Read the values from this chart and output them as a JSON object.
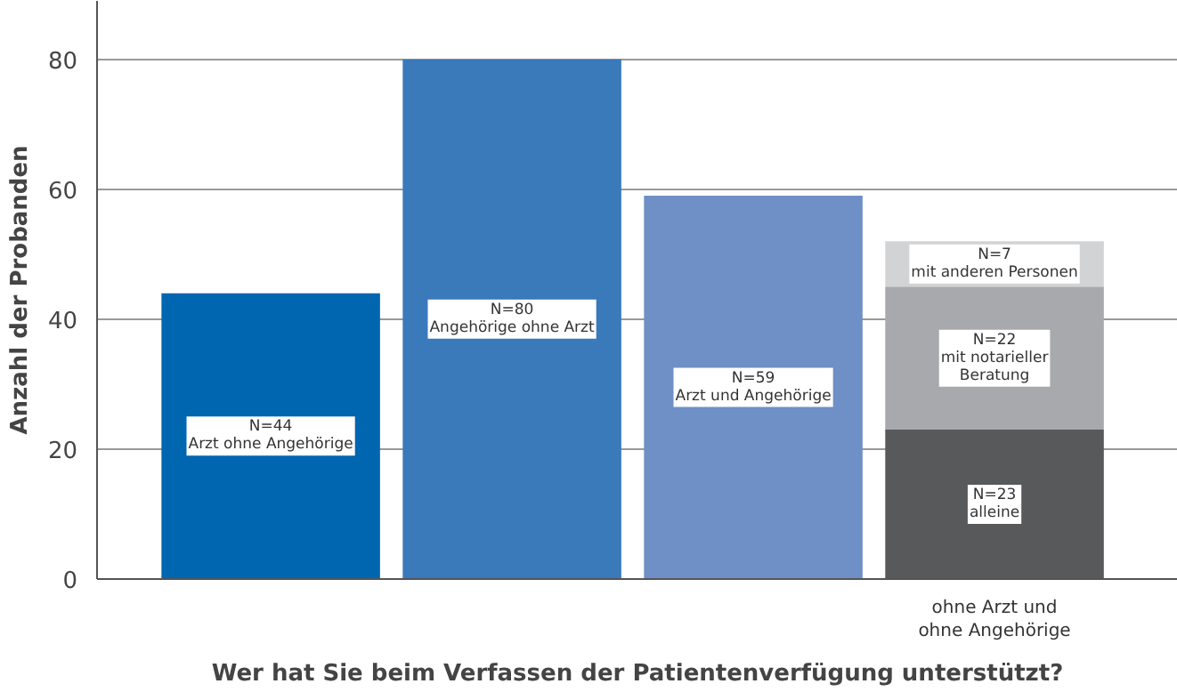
{
  "chart_data": {
    "type": "bar",
    "stacked": true,
    "categories": [
      null,
      null,
      null,
      "ohne Arzt und\nohne Angehörige"
    ],
    "xlabel": "Wer hat Sie beim Verfassen der Patientenverfügung unterstützt?",
    "ylabel": "Anzahl der Probanden",
    "ylim": [
      0,
      89
    ],
    "yticks": [
      0,
      20,
      40,
      60,
      80
    ],
    "grid": "y",
    "series": [
      {
        "colors": [
          "#0066b0",
          "#3a79ba",
          "#6e90c6",
          "#58595b"
        ],
        "values": [
          44,
          80,
          59,
          23
        ],
        "value_labels": [
          "N=44\nArzt ohne Angehörige",
          "N=80\nAngehörige ohne Arzt",
          "N=59\nArzt und Angehörige",
          "N=23\nalleine"
        ]
      },
      {
        "colors": [
          null,
          null,
          null,
          "#a7a9ac"
        ],
        "values": [
          null,
          null,
          null,
          22
        ],
        "value_labels": [
          null,
          null,
          null,
          "N=22\nmit notarieller\nBeratung"
        ]
      },
      {
        "colors": [
          null,
          null,
          null,
          "#d1d3d4"
        ],
        "values": [
          null,
          null,
          null,
          7
        ],
        "value_labels": [
          null,
          null,
          null,
          "N=7\nmit anderen Personen"
        ]
      }
    ]
  }
}
